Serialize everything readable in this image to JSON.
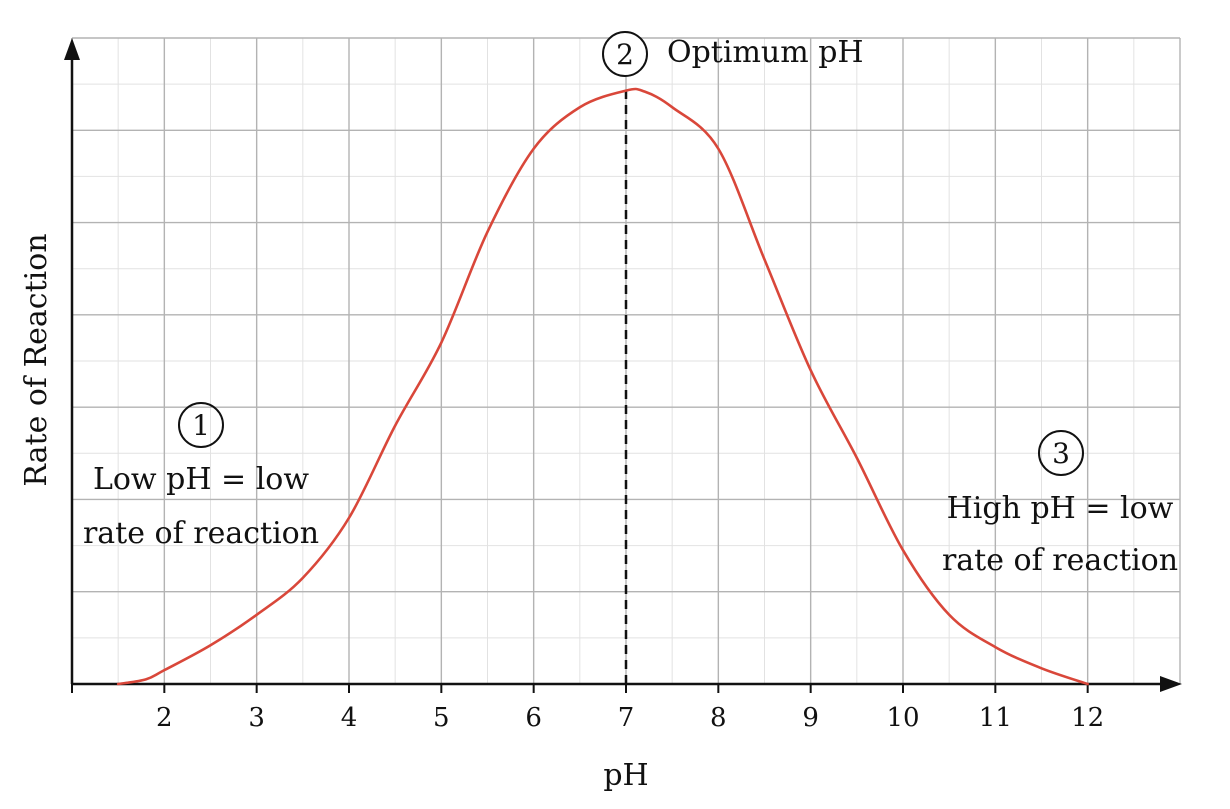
{
  "chart_data": {
    "type": "line",
    "xlabel": "pH",
    "ylabel": "Rate of Reaction",
    "xlim": [
      1,
      13
    ],
    "ylim": [
      0,
      7
    ],
    "grid": true,
    "x_ticks": [
      "2",
      "3",
      "4",
      "5",
      "6",
      "7",
      "8",
      "9",
      "10",
      "11",
      "12"
    ],
    "series": [
      {
        "color": "#d9473a",
        "x": [
          1.5,
          1.8,
          2.0,
          2.5,
          3.0,
          3.5,
          4.0,
          4.5,
          5.0,
          5.5,
          6.0,
          6.5,
          7.0,
          7.2,
          7.5,
          8.0,
          8.5,
          9.0,
          9.5,
          10.0,
          10.5,
          11.0,
          11.5,
          12.0
        ],
        "y": [
          0.0,
          0.05,
          0.15,
          0.42,
          0.75,
          1.15,
          1.8,
          2.8,
          3.7,
          4.9,
          5.8,
          6.25,
          6.43,
          6.42,
          6.25,
          5.8,
          4.6,
          3.4,
          2.45,
          1.45,
          0.75,
          0.4,
          0.17,
          0.0
        ]
      }
    ],
    "reference_line": {
      "x": 7,
      "style": "dashed",
      "color": "#111111"
    },
    "annotations": [
      {
        "number": "1",
        "lines": [
          "Low pH = low",
          "rate of reaction"
        ]
      },
      {
        "number": "2",
        "lines": [
          "Optimum pH"
        ]
      },
      {
        "number": "3",
        "lines": [
          "High pH = low",
          "rate of reaction"
        ]
      }
    ]
  }
}
